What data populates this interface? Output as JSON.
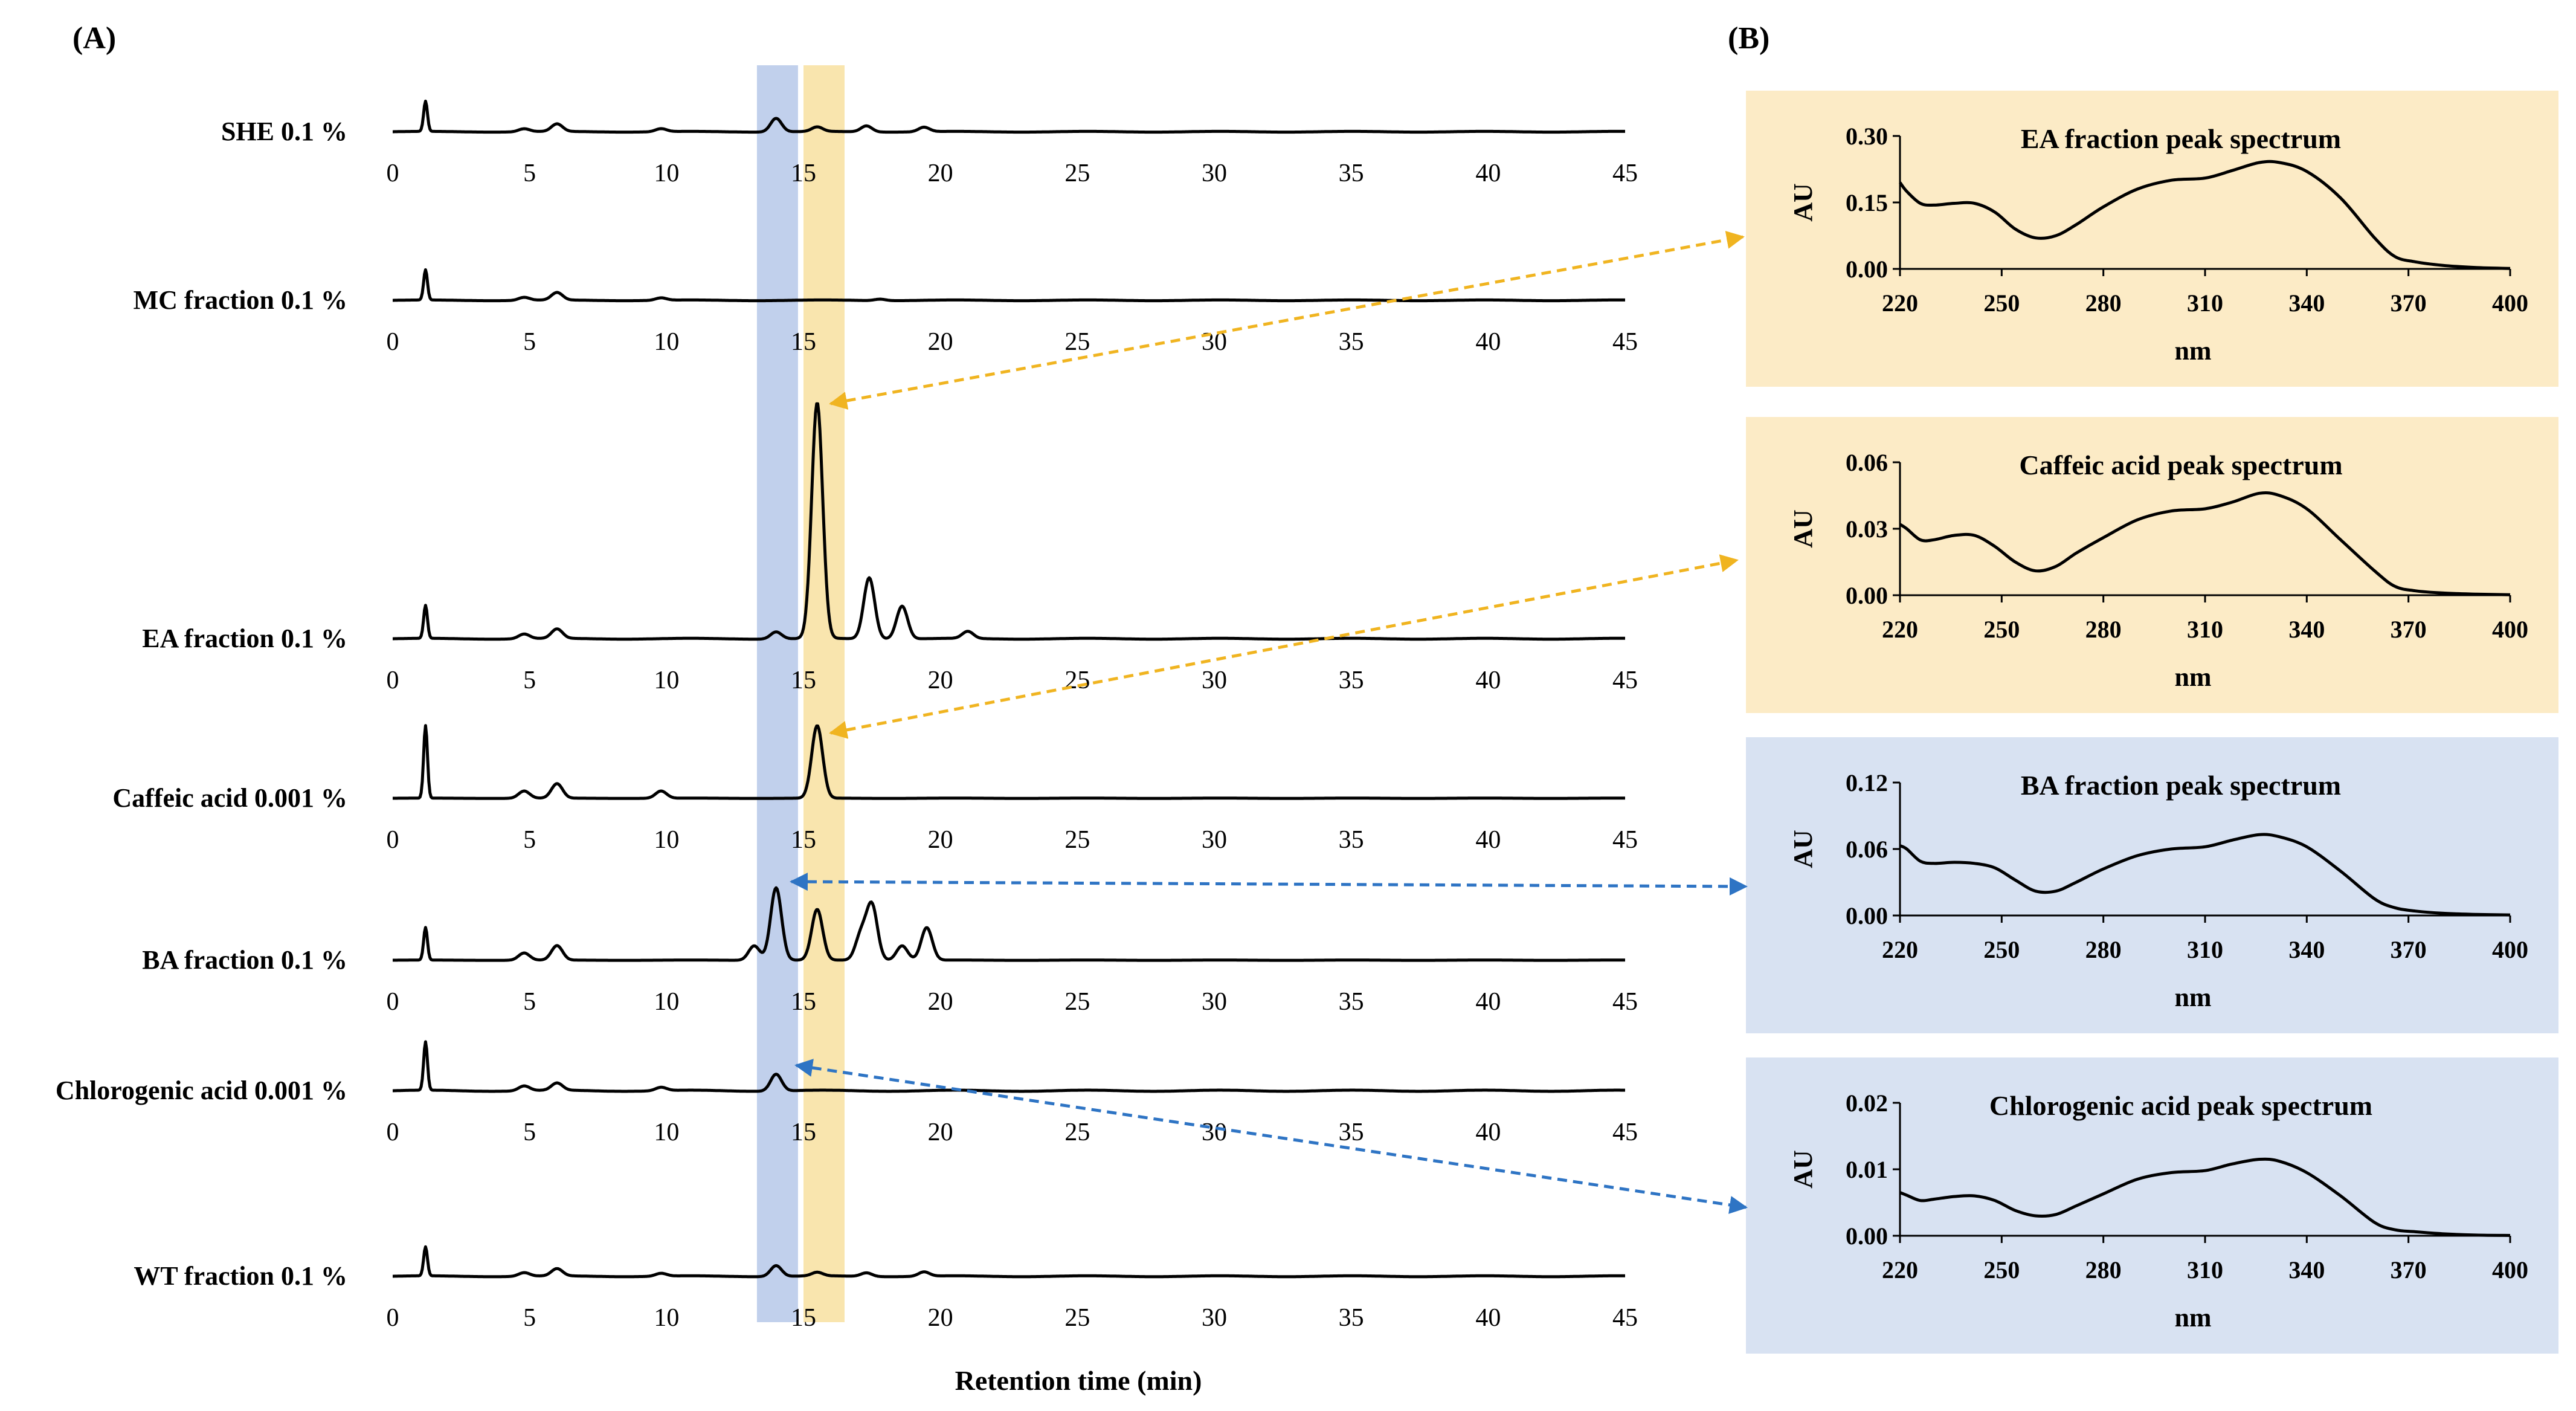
{
  "panel_labels": {
    "a": "(A)",
    "b": "(B)"
  },
  "colors": {
    "yellow_band": "#F8E2A5",
    "blue_band": "#BACBEA",
    "yellow_panel": "#FCEBC6",
    "blue_panel": "#D8E2F2",
    "yellow_arrow": "#F0B420",
    "blue_arrow": "#2E74C4"
  },
  "chart_data": [
    {
      "type": "line",
      "title": "",
      "xlabel": "Retention time (min)",
      "xlim": [
        0,
        45
      ],
      "x_ticks": [
        "0",
        "5",
        "10",
        "15",
        "20",
        "25",
        "30",
        "35",
        "40",
        "45"
      ],
      "highlight_bands": [
        {
          "color": "blue",
          "x_range": [
            13.3,
            14.8
          ]
        },
        {
          "color": "yellow",
          "x_range": [
            15.0,
            16.5
          ]
        }
      ],
      "series": [
        {
          "name": "SHE 0.1 %",
          "peaks": [
            [
              1.2,
              1.0
            ],
            [
              4.8,
              0.1
            ],
            [
              6.0,
              0.25
            ],
            [
              9.8,
              0.1
            ],
            [
              14.0,
              0.45
            ],
            [
              15.5,
              0.15
            ],
            [
              17.3,
              0.2
            ],
            [
              19.4,
              0.15
            ]
          ]
        },
        {
          "name": "MC fraction 0.1 %",
          "peaks": [
            [
              1.2,
              1.0
            ],
            [
              4.8,
              0.1
            ],
            [
              6.0,
              0.25
            ],
            [
              9.8,
              0.08
            ],
            [
              17.8,
              0.05
            ]
          ]
        },
        {
          "name": "EA fraction 0.1 %",
          "peaks": [
            [
              1.2,
              0.14
            ],
            [
              4.8,
              0.02
            ],
            [
              6.0,
              0.04
            ],
            [
              14.0,
              0.03
            ],
            [
              15.5,
              1.0
            ],
            [
              17.4,
              0.26
            ],
            [
              18.6,
              0.14
            ],
            [
              21.0,
              0.03
            ]
          ]
        },
        {
          "name": "Caffeic acid 0.001 %",
          "peaks": [
            [
              1.2,
              1.0
            ],
            [
              4.8,
              0.1
            ],
            [
              6.0,
              0.2
            ],
            [
              9.8,
              0.1
            ],
            [
              15.5,
              1.0
            ]
          ]
        },
        {
          "name": "BA fraction 0.1 %",
          "peaks": [
            [
              1.2,
              0.45
            ],
            [
              4.8,
              0.1
            ],
            [
              6.0,
              0.2
            ],
            [
              13.2,
              0.2
            ],
            [
              14.0,
              1.0
            ],
            [
              15.5,
              0.7
            ],
            [
              17.1,
              0.35
            ],
            [
              17.5,
              0.75
            ],
            [
              18.6,
              0.2
            ],
            [
              19.5,
              0.45
            ]
          ]
        },
        {
          "name": "Chlorogenic acid 0.001 %",
          "peaks": [
            [
              1.2,
              1.0
            ],
            [
              4.8,
              0.1
            ],
            [
              6.0,
              0.15
            ],
            [
              9.8,
              0.07
            ],
            [
              14.0,
              0.35
            ]
          ]
        },
        {
          "name": "WT fraction 0.1 %",
          "peaks": [
            [
              1.2,
              0.8
            ],
            [
              4.8,
              0.1
            ],
            [
              6.0,
              0.2
            ],
            [
              9.8,
              0.08
            ],
            [
              14.0,
              0.3
            ],
            [
              15.5,
              0.1
            ],
            [
              17.3,
              0.1
            ],
            [
              19.4,
              0.12
            ]
          ]
        }
      ]
    },
    {
      "type": "line",
      "title": "EA fraction peak spectrum",
      "xlabel": "nm",
      "ylabel": "AU",
      "xlim": [
        220,
        400
      ],
      "ylim": [
        0,
        0.3
      ],
      "x_ticks": [
        "220",
        "250",
        "280",
        "310",
        "340",
        "370",
        "400"
      ],
      "y_ticks": [
        "0.00",
        "0.15",
        "0.30"
      ],
      "x": [
        220,
        222,
        226,
        230,
        236,
        242,
        248,
        254,
        260,
        266,
        272,
        280,
        290,
        300,
        310,
        318,
        326,
        332,
        340,
        350,
        360,
        366,
        372,
        380,
        390,
        400
      ],
      "values": [
        0.195,
        0.175,
        0.148,
        0.144,
        0.148,
        0.148,
        0.128,
        0.09,
        0.07,
        0.075,
        0.1,
        0.14,
        0.18,
        0.2,
        0.205,
        0.222,
        0.24,
        0.24,
        0.22,
        0.16,
        0.07,
        0.028,
        0.016,
        0.008,
        0.003,
        0.001
      ]
    },
    {
      "type": "line",
      "title": "Caffeic acid peak spectrum",
      "xlabel": "nm",
      "ylabel": "AU",
      "xlim": [
        220,
        400
      ],
      "ylim": [
        0,
        0.06
      ],
      "x_ticks": [
        "220",
        "250",
        "280",
        "310",
        "340",
        "370",
        "400"
      ],
      "y_ticks": [
        "0.00",
        "0.03",
        "0.06"
      ],
      "x": [
        220,
        222,
        226,
        230,
        236,
        242,
        248,
        254,
        260,
        266,
        272,
        280,
        290,
        300,
        310,
        318,
        326,
        332,
        340,
        350,
        360,
        366,
        372,
        380,
        390,
        400
      ],
      "values": [
        0.032,
        0.03,
        0.025,
        0.025,
        0.027,
        0.027,
        0.022,
        0.015,
        0.011,
        0.013,
        0.019,
        0.026,
        0.034,
        0.038,
        0.039,
        0.042,
        0.046,
        0.045,
        0.039,
        0.025,
        0.011,
        0.004,
        0.002,
        0.001,
        0.0005,
        0.0002
      ]
    },
    {
      "type": "line",
      "title": "BA fraction peak spectrum",
      "xlabel": "nm",
      "ylabel": "AU",
      "xlim": [
        220,
        400
      ],
      "ylim": [
        0,
        0.12
      ],
      "x_ticks": [
        "220",
        "250",
        "280",
        "310",
        "340",
        "370",
        "400"
      ],
      "y_ticks": [
        "0.00",
        "0.06",
        "0.12"
      ],
      "x": [
        220,
        222,
        226,
        230,
        236,
        242,
        248,
        254,
        260,
        266,
        272,
        280,
        290,
        300,
        310,
        318,
        326,
        332,
        340,
        350,
        360,
        366,
        372,
        380,
        390,
        400
      ],
      "values": [
        0.063,
        0.06,
        0.049,
        0.047,
        0.048,
        0.047,
        0.043,
        0.032,
        0.022,
        0.022,
        0.03,
        0.042,
        0.054,
        0.06,
        0.062,
        0.068,
        0.073,
        0.071,
        0.062,
        0.04,
        0.015,
        0.007,
        0.004,
        0.002,
        0.001,
        0.0005
      ]
    },
    {
      "type": "line",
      "title": "Chlorogenic acid peak spectrum",
      "xlabel": "nm",
      "ylabel": "AU",
      "xlim": [
        220,
        400
      ],
      "ylim": [
        0,
        0.02
      ],
      "x_ticks": [
        "220",
        "250",
        "280",
        "310",
        "340",
        "370",
        "400"
      ],
      "y_ticks": [
        "0.00",
        "0.01",
        "0.02"
      ],
      "x": [
        220,
        222,
        226,
        230,
        236,
        242,
        248,
        254,
        260,
        266,
        272,
        280,
        290,
        300,
        310,
        318,
        326,
        332,
        340,
        350,
        360,
        366,
        372,
        380,
        390,
        400
      ],
      "values": [
        0.0065,
        0.0061,
        0.0053,
        0.0055,
        0.0059,
        0.006,
        0.0053,
        0.0038,
        0.003,
        0.0032,
        0.0045,
        0.0063,
        0.0085,
        0.0095,
        0.0098,
        0.0108,
        0.0115,
        0.0112,
        0.0095,
        0.006,
        0.002,
        0.0009,
        0.0006,
        0.0003,
        0.0001,
        5e-05
      ]
    }
  ]
}
